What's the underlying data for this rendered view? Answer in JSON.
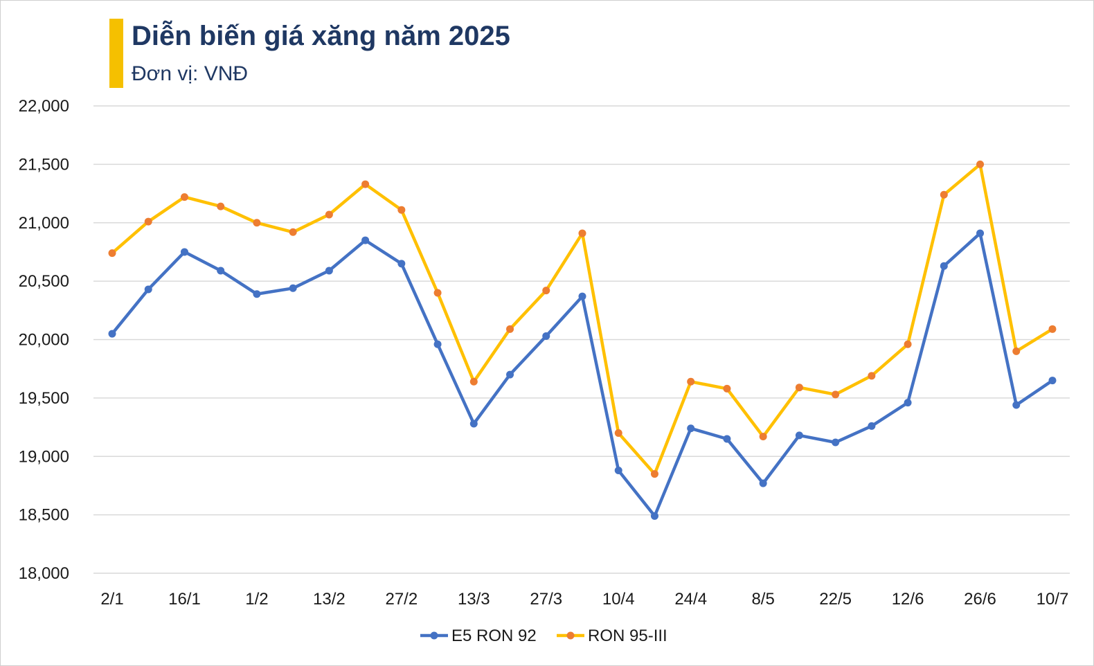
{
  "chart_data": {
    "type": "line",
    "title": "Diễn biến giá xăng năm 2025",
    "subtitle": "Đơn vị: VNĐ",
    "ylim": [
      18000,
      22000
    ],
    "yticks": [
      18000,
      18500,
      19000,
      19500,
      20000,
      20500,
      21000,
      21500,
      22000
    ],
    "ytick_labels": [
      "18,000",
      "18,500",
      "19,000",
      "19,500",
      "20,000",
      "20,500",
      "21,000",
      "21,500",
      "22,000"
    ],
    "x_tick_labels": [
      "2/1",
      "16/1",
      "1/2",
      "13/2",
      "27/2",
      "13/3",
      "27/3",
      "10/4",
      "24/4",
      "8/5",
      "22/5",
      "12/6",
      "26/6",
      "10/7"
    ],
    "grid": true,
    "legend_position": "bottom",
    "series": [
      {
        "name": "E5 RON 92",
        "color": "#4472c4",
        "values": [
          20050,
          20430,
          20750,
          20590,
          20390,
          20440,
          20590,
          20850,
          20650,
          19960,
          19280,
          19700,
          20030,
          20370,
          18880,
          18490,
          19240,
          19150,
          18770,
          19180,
          19120,
          19260,
          19460,
          20630,
          20910,
          19440,
          19650
        ]
      },
      {
        "name": "RON 95-III",
        "color": "#ffc000",
        "marker_color": "#ed7d31",
        "values": [
          20740,
          21010,
          21220,
          21140,
          21000,
          20920,
          21070,
          21330,
          21110,
          20400,
          19640,
          20090,
          20420,
          20910,
          19200,
          18850,
          19640,
          19580,
          19170,
          19590,
          19530,
          19690,
          19960,
          21240,
          21500,
          19900,
          20090
        ]
      }
    ]
  }
}
